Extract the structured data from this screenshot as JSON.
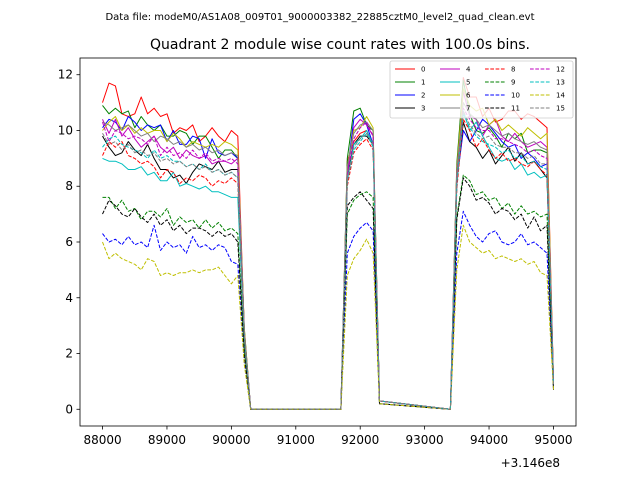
{
  "figure": {
    "supertitle": "Data file: modeM0/AS1A08_009T01_9000003382_22885cztM0_level2_quad_clean.evt",
    "title": "Quadrant 2 module wise count rates with 100.0s bins.",
    "x_offset_label": "+3.146e8"
  },
  "chart_data": {
    "type": "line",
    "title": "Quadrant 2 module wise count rates with 100.0s bins.",
    "xlabel": "",
    "ylabel": "",
    "x_offset": 314600000,
    "xlim": [
      87650,
      95350
    ],
    "ylim": [
      -0.6,
      12.6
    ],
    "xticks": [
      88000,
      89000,
      90000,
      91000,
      92000,
      93000,
      94000,
      95000
    ],
    "yticks": [
      0,
      2,
      4,
      6,
      8,
      10,
      12
    ],
    "grid": false,
    "legend_position": "top-right",
    "x": [
      88000,
      88100,
      88200,
      88300,
      88400,
      88500,
      88600,
      88700,
      88800,
      88900,
      89000,
      89100,
      89200,
      89300,
      89400,
      89500,
      89600,
      89700,
      89800,
      89900,
      90000,
      90100,
      90200,
      90300,
      91700,
      91800,
      91900,
      92000,
      92100,
      92200,
      92300,
      93400,
      93500,
      93600,
      93700,
      93800,
      93900,
      94000,
      94100,
      94200,
      94300,
      94400,
      94500,
      94600,
      94700,
      94800,
      94900,
      95000
    ],
    "series": [
      {
        "name": "0",
        "color": "#ff0000",
        "dash": "solid",
        "values": [
          11.0,
          11.7,
          11.6,
          10.6,
          10.5,
          10.6,
          11.2,
          10.6,
          10.8,
          10.5,
          10.6,
          9.9,
          10.1,
          10.0,
          10.2,
          9.6,
          9.8,
          10.1,
          9.8,
          9.6,
          10.0,
          9.8,
          2.8,
          0,
          0,
          8.9,
          9.6,
          9.9,
          10.0,
          9.5,
          0.3,
          0,
          8.6,
          11.9,
          11.2,
          11.2,
          10.5,
          10.8,
          10.3,
          10.4,
          10.7,
          10.7,
          10.4,
          10.6,
          10.5,
          10.3,
          10.1,
          1.0
        ]
      },
      {
        "name": "1",
        "color": "#008000",
        "dash": "solid",
        "values": [
          10.9,
          10.6,
          10.8,
          10.6,
          10.7,
          10.1,
          10.5,
          10.2,
          10.0,
          10.2,
          9.8,
          9.8,
          10.0,
          9.9,
          9.5,
          9.8,
          9.8,
          9.4,
          9.0,
          9.3,
          9.3,
          9.0,
          2.9,
          0,
          0,
          9.0,
          10.7,
          10.8,
          10.2,
          10.0,
          0.3,
          0,
          8.8,
          11.8,
          10.6,
          10.0,
          9.9,
          10.1,
          9.8,
          9.4,
          9.9,
          9.7,
          9.9,
          9.2,
          9.3,
          9.3,
          9.2,
          1.0
        ]
      },
      {
        "name": "2",
        "color": "#0000ff",
        "dash": "solid",
        "values": [
          10.1,
          10.4,
          10.3,
          10.0,
          10.5,
          10.3,
          10.0,
          10.2,
          10.1,
          10.2,
          9.6,
          10.0,
          9.5,
          9.5,
          9.8,
          9.7,
          9.0,
          9.7,
          9.2,
          9.1,
          9.2,
          9.0,
          2.8,
          0,
          0,
          8.5,
          10.4,
          10.6,
          10.2,
          9.5,
          0.3,
          0,
          8.2,
          10.0,
          9.6,
          10.0,
          10.4,
          10.2,
          9.9,
          9.6,
          9.4,
          9.5,
          9.0,
          9.2,
          9.0,
          8.7,
          8.8,
          1.0
        ]
      },
      {
        "name": "3",
        "color": "#000000",
        "dash": "solid",
        "values": [
          9.8,
          9.4,
          9.1,
          9.2,
          9.6,
          9.3,
          9.1,
          9.5,
          9.0,
          8.6,
          8.6,
          8.3,
          8.4,
          8.1,
          8.5,
          8.8,
          8.7,
          8.6,
          8.9,
          8.5,
          8.6,
          8.6,
          2.6,
          0,
          0,
          8.4,
          9.5,
          9.8,
          9.8,
          9.5,
          0.3,
          0,
          8.2,
          10.3,
          9.6,
          9.4,
          9.0,
          9.3,
          8.8,
          9.1,
          9.4,
          8.9,
          9.2,
          8.8,
          8.9,
          8.6,
          8.3,
          0.9
        ]
      },
      {
        "name": "4",
        "color": "#bf00bf",
        "dash": "solid",
        "values": [
          10.4,
          9.9,
          10.4,
          9.8,
          10.1,
          9.7,
          9.4,
          9.6,
          9.8,
          9.4,
          9.2,
          9.4,
          9.0,
          9.3,
          9.1,
          9.0,
          9.1,
          8.8,
          8.9,
          8.9,
          8.8,
          9.0,
          2.8,
          0,
          0,
          8.4,
          10.1,
          10.4,
          10.2,
          9.8,
          0.3,
          0,
          8.6,
          11.4,
          10.5,
          10.4,
          9.8,
          10.2,
          10.4,
          9.8,
          9.6,
          9.9,
          9.6,
          9.4,
          9.5,
          9.6,
          9.4,
          1.0
        ]
      },
      {
        "name": "5",
        "color": "#00bfbf",
        "dash": "solid",
        "values": [
          9.0,
          8.9,
          8.9,
          8.8,
          8.6,
          8.6,
          8.7,
          8.4,
          8.5,
          8.2,
          8.2,
          8.5,
          8.0,
          8.1,
          8.0,
          7.9,
          8.0,
          7.8,
          7.8,
          7.7,
          7.6,
          7.6,
          2.4,
          0,
          0,
          8.2,
          9.5,
          9.7,
          10.0,
          9.5,
          0.3,
          0,
          8.0,
          10.7,
          10.0,
          10.3,
          9.8,
          9.4,
          9.0,
          8.9,
          9.0,
          8.6,
          8.8,
          8.4,
          8.5,
          8.3,
          8.4,
          0.9
        ]
      },
      {
        "name": "6",
        "color": "#bfbf00",
        "dash": "solid",
        "values": [
          10.0,
          10.3,
          10.5,
          10.0,
          10.2,
          9.9,
          10.1,
          9.9,
          10.0,
          10.0,
          9.6,
          9.9,
          9.7,
          9.4,
          9.6,
          9.5,
          9.4,
          9.5,
          9.4,
          9.6,
          9.5,
          9.3,
          2.9,
          0,
          0,
          8.7,
          10.0,
          10.1,
          10.5,
          10.1,
          0.3,
          0,
          8.6,
          11.5,
          10.9,
          10.7,
          10.8,
          10.2,
          10.4,
          10.0,
          10.2,
          10.0,
          9.8,
          10.1,
          9.9,
          9.7,
          9.9,
          1.0
        ]
      },
      {
        "name": "7",
        "color": "#808080",
        "dash": "solid",
        "values": [
          10.3,
          10.2,
          10.0,
          10.1,
          10.2,
          10.0,
          9.8,
          9.9,
          9.6,
          9.8,
          9.7,
          9.5,
          9.6,
          9.4,
          9.5,
          9.3,
          9.4,
          9.2,
          9.3,
          9.1,
          9.2,
          9.1,
          2.8,
          0,
          0,
          8.7,
          9.9,
          10.2,
          10.3,
          10.0,
          0.3,
          0,
          8.5,
          11.0,
          10.6,
          10.4,
          10.1,
          10.2,
          10.0,
          9.8,
          9.9,
          9.7,
          9.6,
          9.5,
          9.6,
          9.4,
          9.3,
          1.0
        ]
      },
      {
        "name": "8",
        "color": "#ff0000",
        "dash": "dashed",
        "values": [
          9.1,
          9.6,
          9.4,
          9.6,
          9.1,
          9.0,
          8.8,
          8.9,
          8.7,
          8.3,
          8.6,
          8.5,
          8.1,
          8.3,
          8.2,
          8.4,
          8.3,
          8.0,
          8.2,
          8.1,
          8.3,
          8.1,
          2.5,
          0,
          0,
          8.0,
          9.2,
          9.5,
          9.7,
          9.3,
          0.3,
          0,
          7.9,
          10.4,
          10.0,
          9.4,
          9.7,
          9.3,
          9.0,
          9.2,
          8.9,
          9.0,
          8.8,
          8.7,
          8.9,
          8.6,
          8.4,
          0.9
        ]
      },
      {
        "name": "9",
        "color": "#008000",
        "dash": "dashed",
        "values": [
          7.6,
          7.6,
          7.2,
          7.5,
          7.1,
          7.2,
          6.8,
          7.1,
          7.1,
          6.9,
          7.2,
          6.6,
          6.9,
          6.7,
          6.8,
          6.5,
          6.8,
          6.5,
          6.7,
          6.4,
          6.5,
          6.3,
          2.1,
          0,
          0,
          7.0,
          7.5,
          7.7,
          7.8,
          7.6,
          0.2,
          0,
          6.9,
          8.4,
          8.2,
          7.7,
          7.8,
          7.5,
          7.6,
          7.2,
          7.4,
          7.0,
          7.3,
          7.0,
          7.1,
          6.9,
          7.0,
          0.8
        ]
      },
      {
        "name": "10",
        "color": "#0000ff",
        "dash": "dashed",
        "values": [
          6.3,
          6.0,
          6.1,
          5.9,
          6.2,
          5.9,
          6.0,
          5.8,
          6.6,
          5.7,
          6.0,
          5.8,
          5.9,
          5.6,
          6.2,
          5.8,
          5.9,
          5.7,
          5.9,
          5.8,
          5.3,
          5.2,
          1.7,
          0,
          0,
          5.6,
          6.2,
          6.5,
          6.7,
          6.4,
          0.2,
          0,
          5.6,
          7.1,
          6.6,
          6.2,
          6.0,
          6.3,
          6.4,
          6.0,
          5.9,
          6.0,
          6.3,
          5.9,
          6.0,
          5.8,
          5.6,
          0.7
        ]
      },
      {
        "name": "11",
        "color": "#000000",
        "dash": "dashed",
        "values": [
          7.0,
          7.5,
          7.3,
          7.0,
          6.9,
          7.2,
          6.9,
          6.7,
          7.0,
          6.6,
          6.8,
          6.4,
          6.6,
          6.3,
          6.5,
          6.5,
          6.4,
          6.2,
          6.4,
          6.2,
          6.3,
          6.0,
          2.0,
          0,
          0,
          7.3,
          7.6,
          7.8,
          7.5,
          7.2,
          0.2,
          0,
          6.8,
          8.3,
          8.0,
          7.5,
          7.6,
          7.4,
          7.0,
          7.2,
          7.1,
          6.8,
          7.0,
          6.5,
          6.9,
          6.4,
          6.6,
          0.7
        ]
      },
      {
        "name": "12",
        "color": "#bf00bf",
        "dash": "dashed",
        "values": [
          10.3,
          9.6,
          10.0,
          9.9,
          9.7,
          9.8,
          9.7,
          9.5,
          9.8,
          9.1,
          9.4,
          9.1,
          9.2,
          9.0,
          9.3,
          9.0,
          9.2,
          8.9,
          9.0,
          8.9,
          9.0,
          8.8,
          2.7,
          0,
          0,
          8.4,
          9.7,
          10.1,
          10.3,
          9.8,
          0.3,
          0,
          8.3,
          10.8,
          10.4,
          10.1,
          10.0,
          10.0,
          9.7,
          9.7,
          9.6,
          9.5,
          9.4,
          9.2,
          9.3,
          9.1,
          9.0,
          1.0
        ]
      },
      {
        "name": "13",
        "color": "#00bfbf",
        "dash": "dashed",
        "values": [
          9.4,
          9.7,
          9.8,
          9.5,
          9.4,
          9.3,
          9.2,
          9.0,
          9.3,
          9.0,
          9.1,
          8.9,
          8.9,
          8.7,
          8.8,
          8.6,
          8.8,
          8.5,
          8.6,
          8.4,
          8.5,
          8.3,
          2.6,
          0,
          0,
          8.2,
          9.3,
          9.6,
          9.9,
          9.4,
          0.3,
          0,
          8.1,
          10.6,
          10.1,
          9.8,
          9.6,
          9.5,
          9.4,
          9.2,
          9.3,
          9.0,
          9.1,
          8.8,
          8.9,
          8.7,
          8.6,
          0.9
        ]
      },
      {
        "name": "14",
        "color": "#bfbf00",
        "dash": "dashed",
        "values": [
          6.0,
          5.4,
          5.6,
          5.4,
          5.3,
          5.2,
          5.0,
          5.4,
          5.3,
          4.8,
          4.9,
          4.8,
          4.9,
          4.9,
          5.0,
          4.9,
          5.0,
          5.0,
          5.1,
          4.8,
          4.5,
          4.8,
          1.6,
          0,
          0,
          4.8,
          5.4,
          5.7,
          6.1,
          5.6,
          0.2,
          0,
          5.0,
          6.6,
          6.0,
          5.8,
          5.6,
          5.7,
          5.4,
          5.5,
          5.4,
          5.3,
          5.4,
          5.2,
          5.3,
          4.9,
          4.8,
          0.7
        ]
      },
      {
        "name": "15",
        "color": "#808080",
        "dash": "dashed",
        "values": [
          9.9,
          9.5,
          9.6,
          9.3,
          9.5,
          9.2,
          9.3,
          9.1,
          9.2,
          8.9,
          9.0,
          8.8,
          8.9,
          8.7,
          8.8,
          8.6,
          8.7,
          8.5,
          8.6,
          8.4,
          8.5,
          8.3,
          2.6,
          0,
          0,
          8.3,
          9.4,
          9.7,
          9.9,
          9.5,
          0.3,
          0,
          8.2,
          10.7,
          10.2,
          9.9,
          9.7,
          9.8,
          9.5,
          9.4,
          9.4,
          9.2,
          9.2,
          9.0,
          9.1,
          8.8,
          8.8,
          0.9
        ]
      }
    ]
  }
}
